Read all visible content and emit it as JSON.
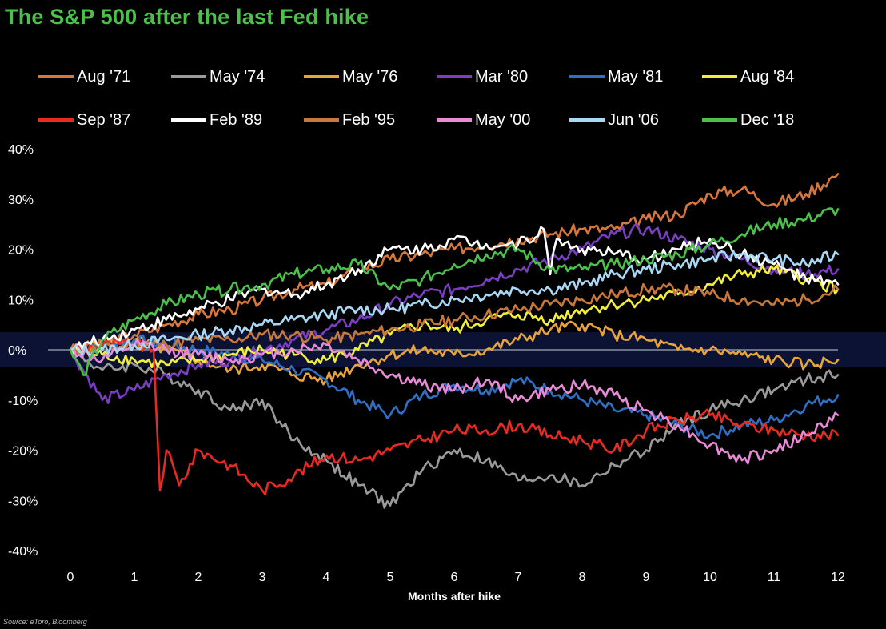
{
  "chart_data": {
    "type": "line",
    "title": "The S&P 500 after the last Fed hike",
    "xlabel": "Months after hike",
    "ylabel": "",
    "xlim": [
      0,
      12
    ],
    "ylim": [
      -40,
      40
    ],
    "x_ticks": [
      "0",
      "1",
      "2",
      "3",
      "4",
      "5",
      "6",
      "7",
      "8",
      "9",
      "10",
      "11",
      "12"
    ],
    "y_ticks": [
      "40%",
      "30%",
      "20%",
      "10%",
      "0%",
      "-10%",
      "-20%",
      "-30%",
      "-40%"
    ],
    "legend_position": "top",
    "grid": false,
    "zero_band_color": "#0b1233",
    "zero_line_color": "#8a8fa3",
    "source": "Source: eToro, Bloomberg",
    "series": [
      {
        "name": "Aug '71",
        "color": "#d9773a",
        "x": [
          0,
          0.5,
          1,
          1.5,
          2,
          2.5,
          3,
          3.5,
          4,
          4.5,
          5,
          5.5,
          6,
          6.5,
          7,
          7.5,
          8,
          8.5,
          9,
          9.5,
          10,
          10.5,
          11,
          11.5,
          12
        ],
        "y": [
          0,
          1,
          3,
          5,
          7,
          8,
          10,
          12,
          13,
          16,
          18,
          19,
          20,
          21,
          22,
          23,
          24,
          24,
          26,
          27,
          31,
          32,
          29,
          31,
          35
        ]
      },
      {
        "name": "May '74",
        "color": "#9a9a9a",
        "x": [
          0,
          0.5,
          1,
          1.5,
          2,
          2.5,
          3,
          3.5,
          4,
          4.5,
          5,
          5.5,
          6,
          6.5,
          7,
          7.5,
          8,
          8.5,
          9,
          9.5,
          10,
          10.5,
          11,
          11.5,
          12
        ],
        "y": [
          0,
          -4,
          -3,
          -5,
          -8,
          -12,
          -10,
          -18,
          -22,
          -27,
          -31,
          -24,
          -20,
          -22,
          -26,
          -25,
          -27,
          -23,
          -20,
          -15,
          -12,
          -10,
          -8,
          -6,
          -5
        ]
      },
      {
        "name": "May '76",
        "color": "#e8a43a",
        "x": [
          0,
          0.5,
          1,
          1.5,
          2,
          2.5,
          3,
          3.5,
          4,
          4.5,
          5,
          5.5,
          6,
          6.5,
          7,
          7.5,
          8,
          8.5,
          9,
          9.5,
          10,
          10.5,
          11,
          11.5,
          12
        ],
        "y": [
          0,
          1,
          2,
          0,
          -2,
          -4,
          -3,
          -5,
          -6,
          -3,
          -1,
          0,
          -1,
          0,
          2,
          4,
          5,
          3,
          2,
          0,
          0,
          -1,
          -2,
          -3,
          -2
        ]
      },
      {
        "name": "Mar '80",
        "color": "#7a3fc0",
        "x": [
          0,
          0.5,
          1,
          1.5,
          2,
          2.5,
          3,
          3.5,
          4,
          4.5,
          5,
          5.5,
          6,
          6.5,
          7,
          7.5,
          8,
          8.5,
          9,
          9.5,
          10,
          10.5,
          11,
          11.5,
          12
        ],
        "y": [
          0,
          -10,
          -8,
          -5,
          -3,
          -2,
          0,
          2,
          4,
          6,
          9,
          11,
          12,
          14,
          16,
          18,
          20,
          23,
          24,
          22,
          20,
          18,
          16,
          15,
          16
        ]
      },
      {
        "name": "May '81",
        "color": "#2f6fc4",
        "x": [
          0,
          0.5,
          1,
          1.5,
          2,
          2.5,
          3,
          3.5,
          4,
          4.5,
          5,
          5.5,
          6,
          6.5,
          7,
          7.5,
          8,
          8.5,
          9,
          9.5,
          10,
          10.5,
          11,
          11.5,
          12
        ],
        "y": [
          0,
          1,
          2,
          1,
          0,
          -1,
          -2,
          -4,
          -6,
          -10,
          -13,
          -9,
          -7,
          -8,
          -6,
          -8,
          -10,
          -12,
          -13,
          -15,
          -17,
          -15,
          -14,
          -11,
          -9
        ]
      },
      {
        "name": "Aug '84",
        "color": "#f2ef3a",
        "x": [
          0,
          0.5,
          1,
          1.5,
          2,
          2.5,
          3,
          3.5,
          4,
          4.5,
          5,
          5.5,
          6,
          6.5,
          7,
          7.5,
          8,
          8.5,
          9,
          9.5,
          10,
          10.5,
          11,
          11.5,
          12
        ],
        "y": [
          0,
          -1,
          -2,
          -3,
          -2,
          -1,
          0,
          -1,
          -2,
          0,
          3,
          5,
          4,
          6,
          7,
          6,
          8,
          9,
          10,
          11,
          13,
          15,
          16,
          14,
          12
        ]
      },
      {
        "name": "Sep '87",
        "color": "#e82a22",
        "x": [
          0,
          0.5,
          1,
          1.3,
          1.4,
          1.5,
          1.7,
          2,
          2.5,
          3,
          3.5,
          4,
          4.5,
          5,
          5.5,
          6,
          6.5,
          7,
          7.5,
          8,
          8.5,
          9,
          9.5,
          10,
          10.5,
          11,
          11.5,
          12
        ],
        "y": [
          0,
          1,
          1,
          0,
          -28,
          -20,
          -27,
          -20,
          -23,
          -28,
          -25,
          -21,
          -22,
          -20,
          -18,
          -16,
          -16,
          -15,
          -17,
          -18,
          -20,
          -16,
          -14,
          -13,
          -15,
          -16,
          -17,
          -17
        ]
      },
      {
        "name": "Feb '89",
        "color": "#ffffff",
        "x": [
          0,
          0.5,
          1,
          1.5,
          2,
          2.5,
          3,
          3.5,
          4,
          4.5,
          5,
          5.5,
          6,
          6.5,
          7,
          7.4,
          7.5,
          7.6,
          8,
          8.5,
          9,
          9.5,
          10,
          10.5,
          11,
          11.5,
          12
        ],
        "y": [
          0,
          2,
          4,
          6,
          8,
          10,
          12,
          11,
          13,
          16,
          20,
          20,
          22,
          21,
          21,
          24,
          15,
          22,
          20,
          19,
          18,
          20,
          22,
          19,
          17,
          14,
          13
        ]
      },
      {
        "name": "Feb '95",
        "color": "#c8783a",
        "x": [
          0,
          0.5,
          1,
          1.5,
          2,
          2.5,
          3,
          3.5,
          4,
          4.5,
          5,
          5.5,
          6,
          6.5,
          7,
          7.5,
          8,
          8.5,
          9,
          9.5,
          10,
          10.5,
          11,
          11.5,
          12
        ],
        "y": [
          0,
          0,
          1,
          1,
          2,
          2,
          3,
          3,
          2,
          3,
          4,
          5,
          6,
          7,
          8,
          9,
          10,
          11,
          12,
          12,
          11,
          10,
          9,
          10,
          12
        ]
      },
      {
        "name": "May '00",
        "color": "#e88ad6",
        "x": [
          0,
          0.5,
          1,
          1.5,
          2,
          2.5,
          3,
          3.5,
          4,
          4.5,
          5,
          5.5,
          6,
          6.5,
          7,
          7.5,
          8,
          8.5,
          9,
          9.5,
          10,
          10.5,
          11,
          11.5,
          12
        ],
        "y": [
          0,
          -2,
          1,
          0,
          -1,
          -2,
          -1,
          0,
          1,
          -2,
          -5,
          -7,
          -8,
          -6,
          -10,
          -8,
          -7,
          -9,
          -12,
          -15,
          -19,
          -22,
          -20,
          -17,
          -13
        ]
      },
      {
        "name": "Jun '06",
        "color": "#a9d8f5",
        "x": [
          0,
          0.5,
          1,
          1.5,
          2,
          2.5,
          3,
          3.5,
          4,
          4.5,
          5,
          5.5,
          6,
          6.5,
          7,
          7.5,
          8,
          8.5,
          9,
          9.5,
          10,
          10.5,
          11,
          11.5,
          12
        ],
        "y": [
          0,
          0,
          1,
          2,
          3,
          4,
          5,
          6,
          7,
          8,
          8,
          9,
          10,
          11,
          12,
          12,
          13,
          15,
          16,
          17,
          18,
          19,
          18,
          17,
          19
        ]
      },
      {
        "name": "Dec '18",
        "color": "#4cc04a",
        "x": [
          0,
          0.2,
          0.5,
          1,
          1.5,
          2,
          2.5,
          3,
          3.5,
          4,
          4.5,
          5,
          5.5,
          6,
          6.5,
          7,
          7.5,
          8,
          8.5,
          9,
          9.5,
          10,
          10.5,
          11,
          11.5,
          12
        ],
        "y": [
          0,
          -5,
          2,
          6,
          9,
          11,
          12,
          13,
          15,
          16,
          17,
          12,
          14,
          17,
          19,
          20,
          16,
          16,
          17,
          18,
          19,
          21,
          23,
          25,
          26,
          28
        ]
      }
    ]
  }
}
